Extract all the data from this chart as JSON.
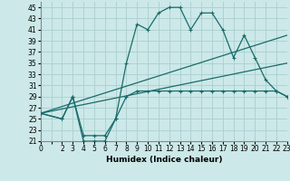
{
  "background_color": "#cce8e8",
  "grid_color": "#aacece",
  "line_color": "#1a6b6b",
  "xlabel": "Humidex (Indice chaleur)",
  "xlim": [
    0,
    23
  ],
  "ylim": [
    21,
    46
  ],
  "yticks": [
    21,
    23,
    25,
    27,
    29,
    31,
    33,
    35,
    37,
    39,
    41,
    43,
    45
  ],
  "xtick_labels": [
    "0",
    "2",
    "3",
    "4",
    "5",
    "6",
    "7",
    "8",
    "9",
    "10",
    "11",
    "12",
    "13",
    "14",
    "15",
    "16",
    "17",
    "18",
    "19",
    "20",
    "21",
    "22",
    "23"
  ],
  "xtick_pos": [
    0,
    2,
    3,
    4,
    5,
    6,
    7,
    8,
    9,
    10,
    11,
    12,
    13,
    14,
    15,
    16,
    17,
    18,
    19,
    20,
    21,
    22,
    23
  ],
  "xticks_minor": [
    0,
    1,
    2,
    3,
    4,
    5,
    6,
    7,
    8,
    9,
    10,
    11,
    12,
    13,
    14,
    15,
    16,
    17,
    18,
    19,
    20,
    21,
    22,
    23
  ],
  "series1_x": [
    0,
    2,
    3,
    4,
    5,
    6,
    7,
    8,
    9,
    10,
    11,
    12,
    13,
    14,
    15,
    16,
    17,
    18,
    19,
    20,
    21,
    22,
    23
  ],
  "series1_y": [
    26,
    25,
    29,
    21,
    21,
    21,
    25,
    35,
    42,
    41,
    44,
    45,
    45,
    41,
    44,
    44,
    41,
    36,
    40,
    36,
    32,
    30,
    29
  ],
  "series2_x": [
    0,
    2,
    3,
    4,
    5,
    6,
    7,
    8,
    9,
    10,
    11,
    12,
    13,
    14,
    15,
    16,
    17,
    18,
    19,
    20,
    21,
    22,
    23
  ],
  "series2_y": [
    26,
    25,
    29,
    22,
    22,
    22,
    25,
    29,
    30,
    30,
    30,
    30,
    30,
    30,
    30,
    30,
    30,
    30,
    30,
    30,
    30,
    30,
    29
  ],
  "series3_x": [
    0,
    23
  ],
  "series3_y": [
    26,
    40
  ],
  "series4_x": [
    0,
    23
  ],
  "series4_y": [
    26,
    35
  ]
}
